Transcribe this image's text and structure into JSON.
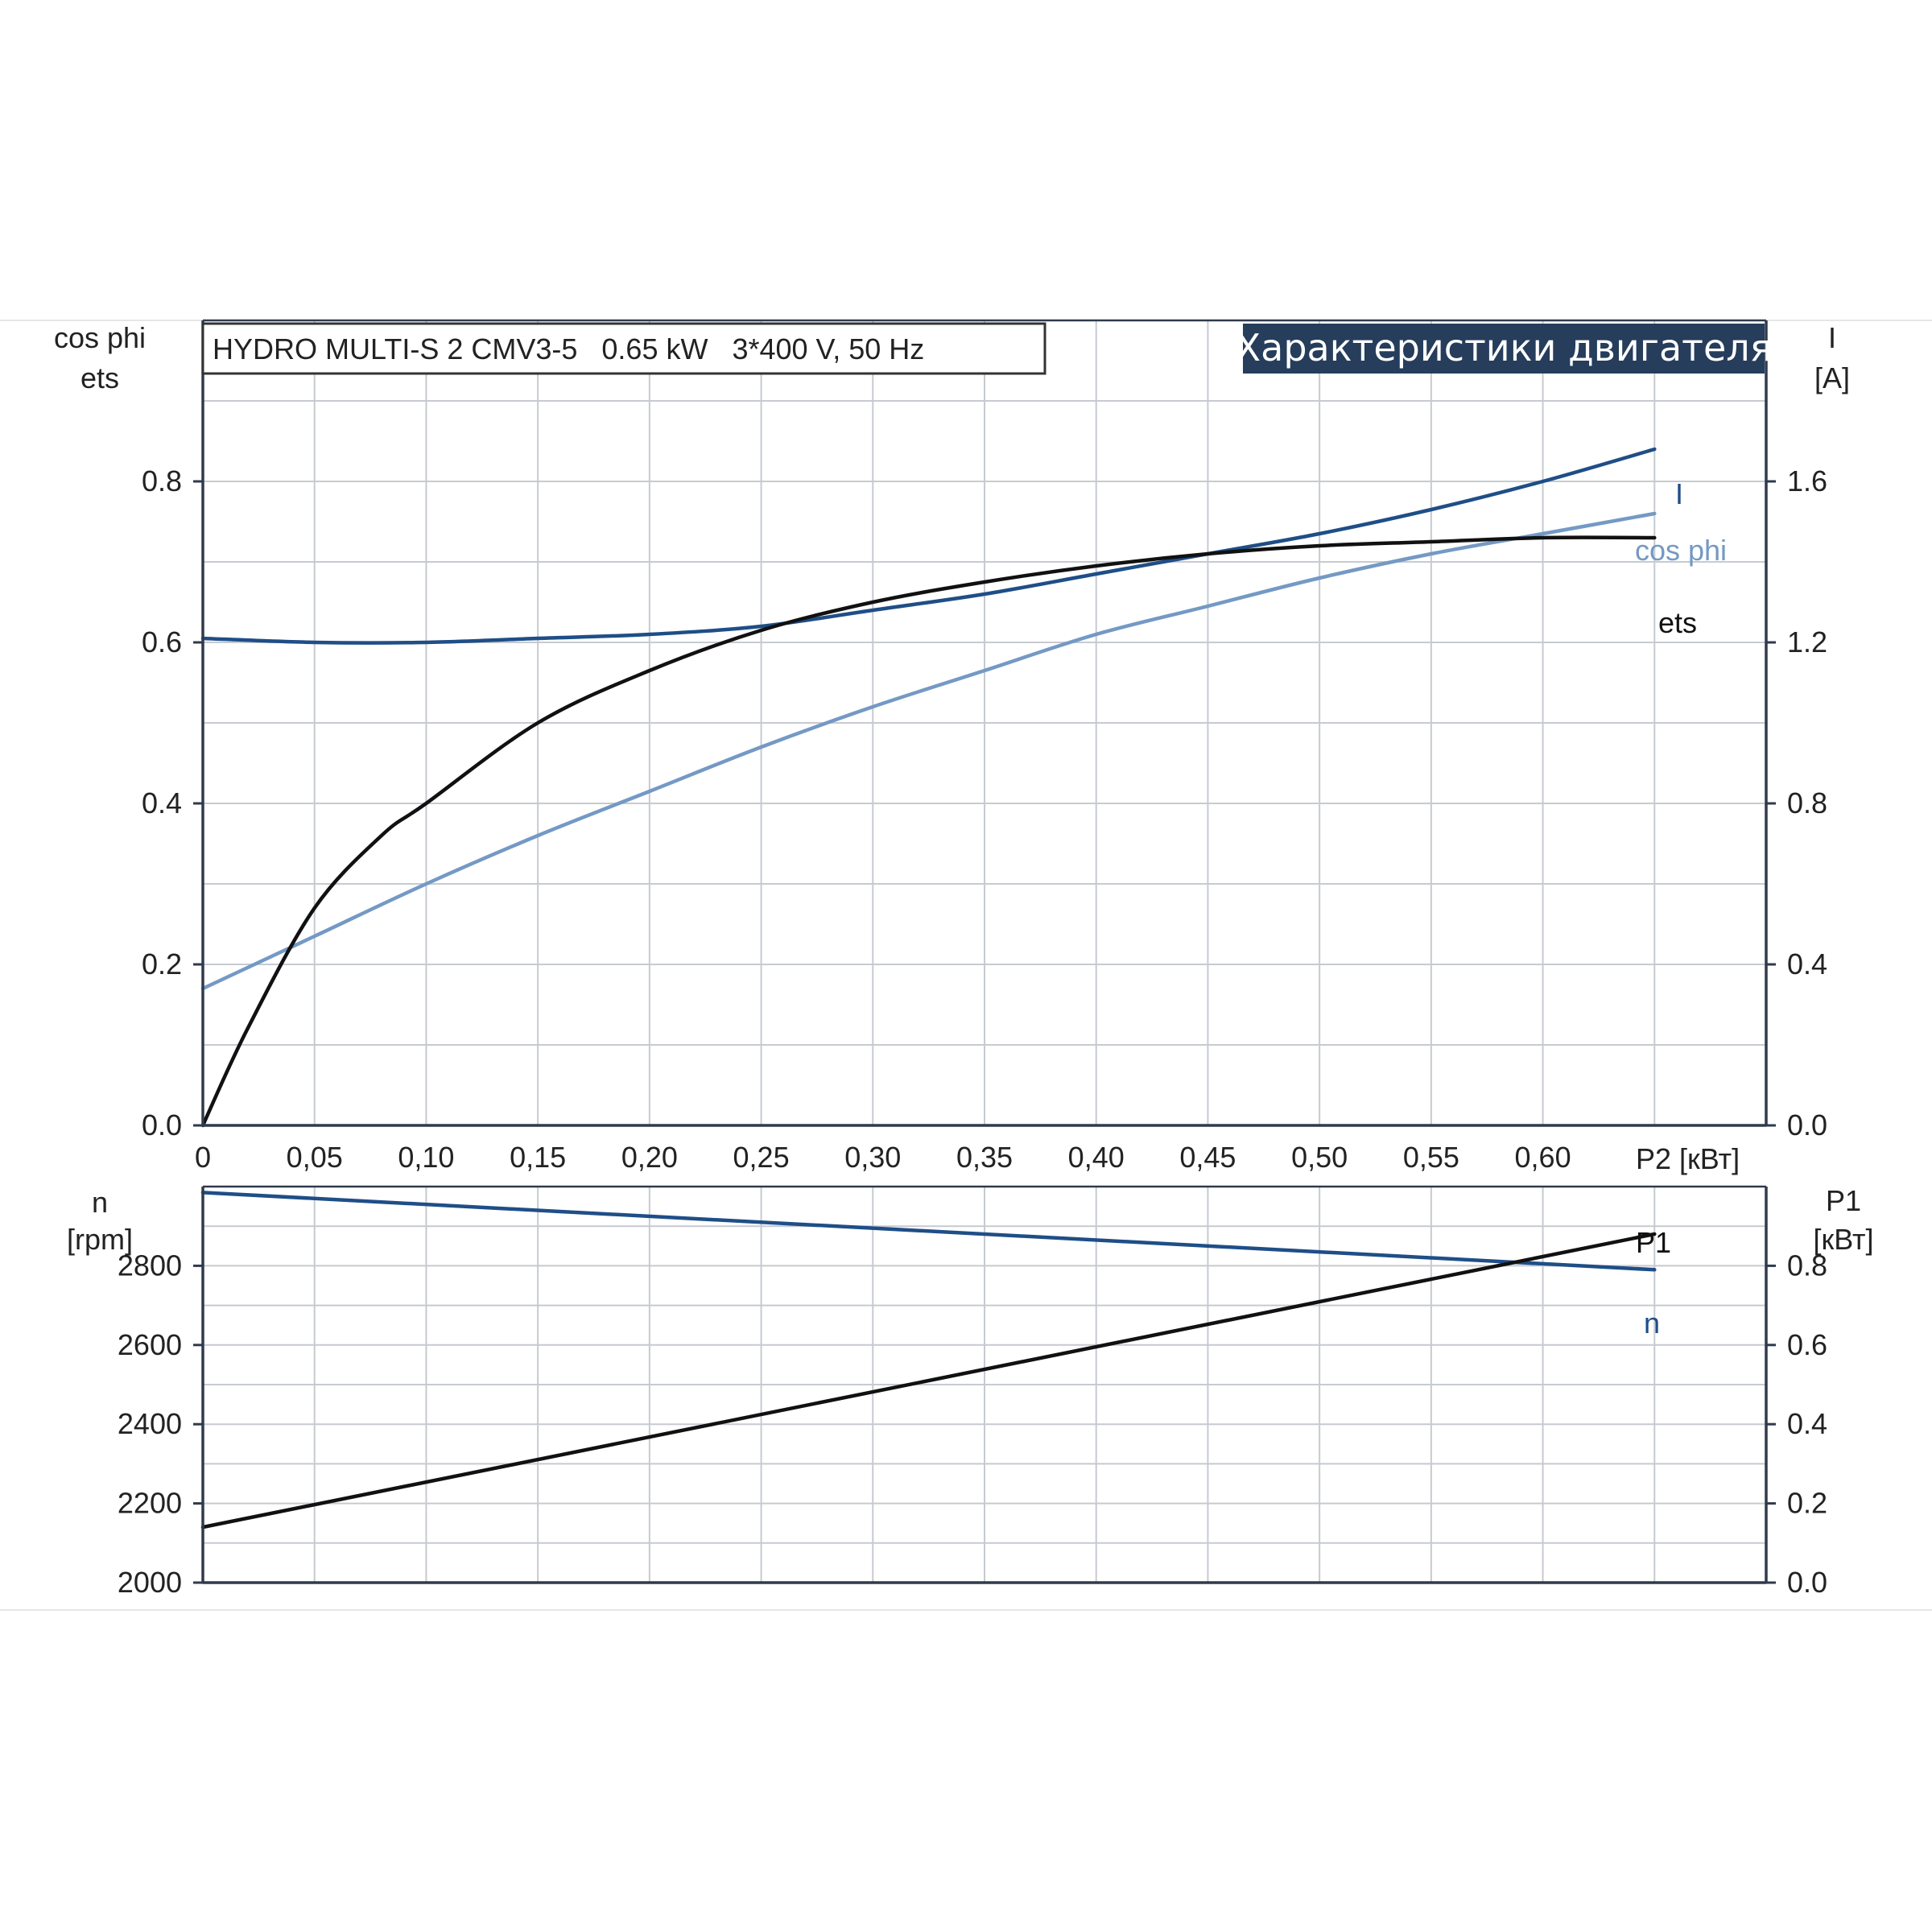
{
  "chart_data": [
    {
      "type": "line",
      "title": "HYDRO MULTI-S 2 CMV3-5   0.65 kW   3*400 V, 50 Hz",
      "badge": "Характеристики двигателя",
      "ylabel_left": [
        "cos phi",
        "ets"
      ],
      "ylabel_right": [
        "I",
        "[A]"
      ],
      "xlabel": "P2 [кВт]",
      "x_ticks": [
        "0",
        "0,05",
        "0,10",
        "0,15",
        "0,20",
        "0,25",
        "0,30",
        "0,35",
        "0,40",
        "0,45",
        "0,50",
        "0,55",
        "0,60"
      ],
      "y_left_ticks": [
        "0.0",
        "0.2",
        "0.4",
        "0.6",
        "0.8"
      ],
      "y_right_ticks": [
        "0.0",
        "0.4",
        "0.8",
        "1.2",
        "1.6"
      ],
      "xlim": [
        0,
        0.7
      ],
      "ylim_left": [
        0,
        1.0
      ],
      "ylim_right": [
        0,
        2.0
      ],
      "grid": true,
      "series": [
        {
          "name": "I",
          "axis": "right",
          "color": "#1f4e87",
          "x": [
            0,
            0.05,
            0.1,
            0.15,
            0.2,
            0.25,
            0.3,
            0.35,
            0.4,
            0.45,
            0.5,
            0.55,
            0.6,
            0.65
          ],
          "y": [
            1.21,
            1.2,
            1.2,
            1.21,
            1.22,
            1.24,
            1.28,
            1.32,
            1.37,
            1.42,
            1.47,
            1.53,
            1.6,
            1.68
          ]
        },
        {
          "name": "cos phi",
          "axis": "left",
          "color": "#7499c4",
          "x": [
            0,
            0.05,
            0.1,
            0.15,
            0.2,
            0.25,
            0.3,
            0.35,
            0.4,
            0.45,
            0.5,
            0.55,
            0.6,
            0.65
          ],
          "y": [
            0.17,
            0.235,
            0.3,
            0.36,
            0.415,
            0.47,
            0.52,
            0.565,
            0.61,
            0.645,
            0.68,
            0.71,
            0.735,
            0.76
          ]
        },
        {
          "name": "ets",
          "axis": "left",
          "color": "#111111",
          "x": [
            0,
            0.02,
            0.05,
            0.08,
            0.1,
            0.15,
            0.2,
            0.25,
            0.3,
            0.35,
            0.4,
            0.45,
            0.5,
            0.55,
            0.6,
            0.65
          ],
          "y": [
            0,
            0.12,
            0.27,
            0.36,
            0.4,
            0.5,
            0.565,
            0.615,
            0.65,
            0.675,
            0.695,
            0.71,
            0.72,
            0.725,
            0.73,
            0.73
          ]
        }
      ]
    },
    {
      "type": "line",
      "ylabel_left": [
        "n",
        "[rpm]"
      ],
      "ylabel_right": [
        "P1",
        "[кВт]"
      ],
      "y_left_ticks": [
        "2000",
        "2200",
        "2400",
        "2600",
        "2800"
      ],
      "y_right_ticks": [
        "0.0",
        "0.2",
        "0.4",
        "0.6",
        "0.8"
      ],
      "xlim": [
        0,
        0.7
      ],
      "ylim_left": [
        2000,
        3000
      ],
      "ylim_right": [
        0,
        1.0
      ],
      "grid": true,
      "series": [
        {
          "name": "n",
          "axis": "left",
          "color": "#1f4e87",
          "x": [
            0,
            0.65
          ],
          "y": [
            2985,
            2790
          ]
        },
        {
          "name": "P1",
          "axis": "right",
          "color": "#111111",
          "x": [
            0,
            0.65
          ],
          "y": [
            0.14,
            0.88
          ]
        }
      ]
    }
  ]
}
